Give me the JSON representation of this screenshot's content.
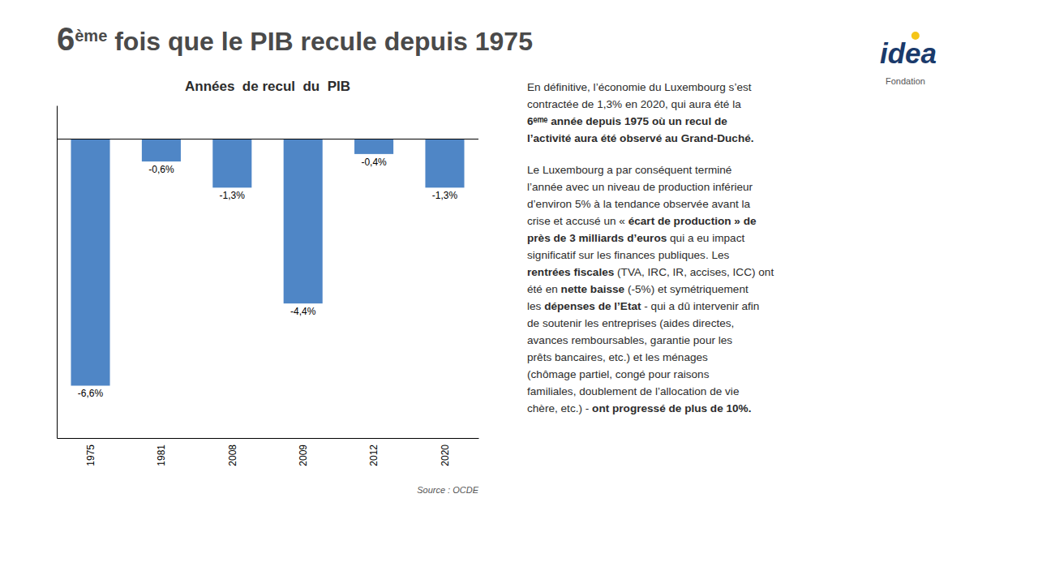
{
  "chart_data": {
    "type": "bar",
    "title": "Années  de recul  du  PIB",
    "categories": [
      "1975",
      "1981",
      "2008",
      "2009",
      "2012",
      "2020"
    ],
    "values": [
      -6.6,
      -0.6,
      -1.3,
      -4.4,
      -0.4,
      -1.3
    ],
    "value_labels": [
      "-6,6%",
      "-0,6%",
      "-1,3%",
      "-4,4%",
      "-0,4%",
      "-1,3%"
    ],
    "color": "#4F86C6",
    "ylim": [
      -8.0,
      0.9
    ],
    "data_labels": true,
    "tick_labels": "x",
    "grid": false,
    "source": "Source : OCDE"
  },
  "page_title": [
    "6",
    "ème",
    " fois que le PIB recule depuis 1975"
  ],
  "logo": [
    "id",
    "e",
    "a",
    "Fondation"
  ],
  "paragraphs": [
    {
      "lines": [
        "En définitive, l’économie du Luxembourg s’est",
        "contractée de 1,3% en 2020, qui aura été la",
        "6ᵉᵐᵉ année depuis 1975 où un recul de",
        "l’activité aura été observé au Grand-Duché."
      ],
      "bold": [
        "6ᵉᵐᵉ année depuis 1975 où un recul de",
        "l’activité aura été observé au Grand-Duché."
      ]
    },
    {
      "lines": [
        "Le Luxembourg a par conséquent terminé",
        "l’année avec un niveau de production inférieur",
        "d’environ 5% à la tendance observée avant la",
        "crise et accusé un « écart de production » de",
        "près de 3 milliards d’euros qui a eu impact",
        "significatif sur les finances publiques. Les",
        "rentrées fiscales (TVA, IRC, IR, accises, ICC) ont",
        "été en nette baisse (-5%) et symétriquement",
        "les dépenses de l’Etat - qui a dû intervenir afin",
        "de soutenir les entreprises (aides directes,",
        "avances remboursables, garantie pour les",
        "prêts bancaires, etc.) et les ménages",
        "(chômage partiel, congé pour raisons",
        "familiales, doublement de l’allocation de vie",
        "chère, etc.) - ont progressé de plus de 10%."
      ],
      "bold": [
        "écart de production » de",
        "près de 3 milliards d’euros",
        "rentrées fiscales",
        "nette baisse",
        "dépenses de l’Etat",
        "ont progressé de plus de 10%."
      ]
    }
  ]
}
